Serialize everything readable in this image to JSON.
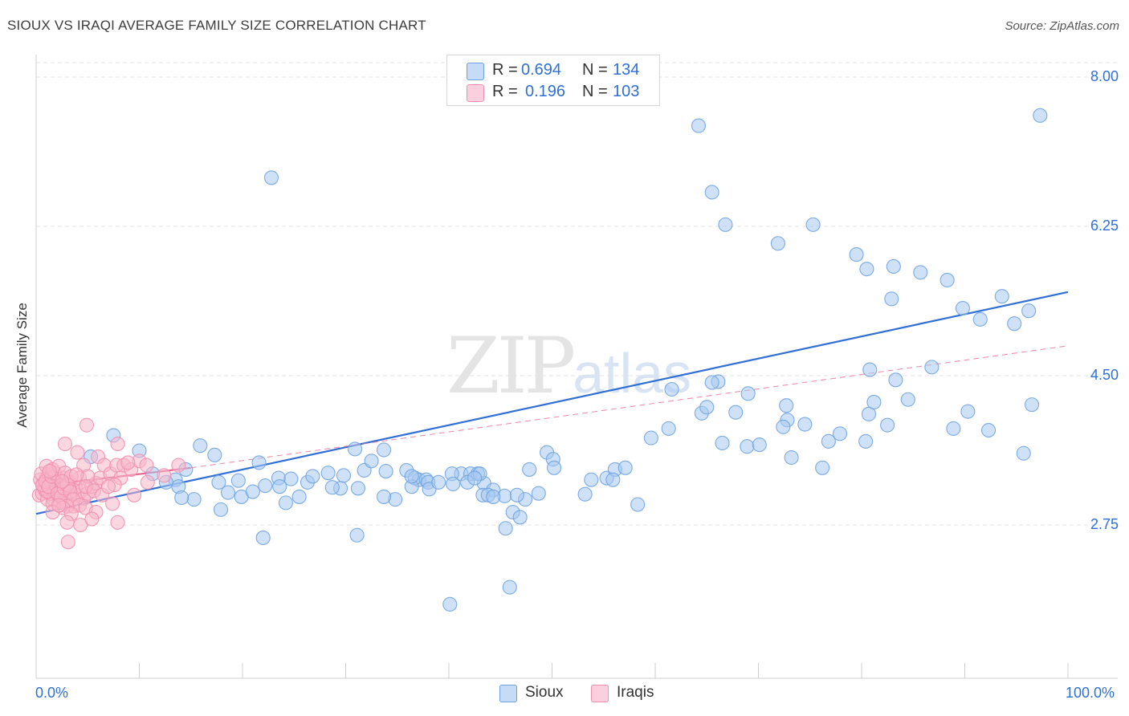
{
  "title": "SIOUX VS IRAQI AVERAGE FAMILY SIZE CORRELATION CHART",
  "source": "Source: ZipAtlas.com",
  "watermark": {
    "zip": "ZIP",
    "atlas": "atlas"
  },
  "legend": {
    "rows": [
      {
        "r_label": "R =",
        "r_value": "0.694",
        "n_label": "N =",
        "n_value": "134",
        "color": "#a8c8f0"
      },
      {
        "r_label": "R =",
        "r_value": "0.196",
        "n_label": "N =",
        "n_value": "103",
        "color": "#f7b6c9"
      }
    ]
  },
  "bottom_legend": [
    {
      "label": "Sioux",
      "color": "#a8c8f0"
    },
    {
      "label": "Iraqis",
      "color": "#f7b6c9"
    }
  ],
  "chart_data": {
    "type": "scatter",
    "title": "SIOUX VS IRAQI AVERAGE FAMILY SIZE CORRELATION CHART",
    "xlabel": "",
    "ylabel": "Average Family Size",
    "xlim": [
      0,
      100
    ],
    "ylim": [
      1.5,
      8.25
    ],
    "x_tick_labels": [
      "0.0%",
      "100.0%"
    ],
    "y_ticks": [
      2.75,
      4.5,
      6.25,
      8.0
    ],
    "y_tick_labels": [
      "2.75",
      "4.50",
      "6.25",
      "8.00"
    ],
    "grid": true,
    "legend_position": "top-center",
    "series": [
      {
        "name": "Sioux",
        "color": "#6fa3e0",
        "fill": "#a8c8f0",
        "trend": {
          "x": [
            0,
            100
          ],
          "y": [
            2.88,
            5.48
          ],
          "style": "solid",
          "color": "#2f6fd6"
        },
        "points": [
          [
            5.3,
            3.55
          ],
          [
            7.5,
            3.8
          ],
          [
            10,
            3.62
          ],
          [
            11.3,
            3.35
          ],
          [
            13.5,
            3.28
          ],
          [
            14.5,
            3.4
          ],
          [
            15.9,
            3.68
          ],
          [
            17.7,
            3.25
          ],
          [
            18.6,
            3.13
          ],
          [
            17.9,
            2.93
          ],
          [
            12.6,
            3.25
          ],
          [
            13.8,
            3.2
          ],
          [
            15.3,
            3.05
          ],
          [
            14.1,
            3.07
          ],
          [
            22,
            2.6
          ],
          [
            23.5,
            3.3
          ],
          [
            24.7,
            3.29
          ],
          [
            21.6,
            3.48
          ],
          [
            19.9,
            3.08
          ],
          [
            19.6,
            3.27
          ],
          [
            17.3,
            3.57
          ],
          [
            21,
            3.14
          ],
          [
            23.6,
            3.2
          ],
          [
            26.3,
            3.25
          ],
          [
            26.8,
            3.32
          ],
          [
            28.3,
            3.36
          ],
          [
            29.5,
            3.18
          ],
          [
            28.7,
            3.19
          ],
          [
            30.9,
            3.64
          ],
          [
            31.8,
            3.39
          ],
          [
            25.5,
            3.08
          ],
          [
            24.2,
            3.01
          ],
          [
            22.2,
            3.21
          ],
          [
            32.5,
            3.5
          ],
          [
            29.8,
            3.33
          ],
          [
            31.2,
            3.18
          ],
          [
            31.1,
            2.63
          ],
          [
            34.8,
            3.05
          ],
          [
            33.7,
            3.08
          ],
          [
            35.9,
            3.39
          ],
          [
            33.9,
            3.38
          ],
          [
            37.1,
            3.28
          ],
          [
            36.7,
            3.3
          ],
          [
            37.8,
            3.28
          ],
          [
            36.4,
            3.2
          ],
          [
            33.7,
            3.63
          ],
          [
            38,
            3.25
          ],
          [
            41.2,
            3.35
          ],
          [
            40.3,
            3.35
          ],
          [
            43.4,
            3.24
          ],
          [
            42.1,
            3.35
          ],
          [
            42.8,
            3.35
          ],
          [
            43,
            3.35
          ],
          [
            44.3,
            3.16
          ],
          [
            45.4,
            3.09
          ],
          [
            43.3,
            3.1
          ],
          [
            47.4,
            3.05
          ],
          [
            48.7,
            3.12
          ],
          [
            41.8,
            3.25
          ],
          [
            40.4,
            3.23
          ],
          [
            38.1,
            3.17
          ],
          [
            39,
            3.25
          ],
          [
            36.4,
            3.32
          ],
          [
            42.5,
            3.3
          ],
          [
            43.8,
            3.1
          ],
          [
            44.3,
            3.08
          ],
          [
            45.5,
            2.71
          ],
          [
            46.2,
            2.9
          ],
          [
            46.6,
            3.1
          ],
          [
            47.8,
            3.4
          ],
          [
            49.5,
            3.6
          ],
          [
            50.1,
            3.52
          ],
          [
            50.2,
            3.42
          ],
          [
            53.8,
            3.28
          ],
          [
            55.3,
            3.3
          ],
          [
            56.1,
            3.4
          ],
          [
            55.9,
            3.28
          ],
          [
            57.1,
            3.42
          ],
          [
            58.3,
            2.99
          ],
          [
            59.6,
            3.77
          ],
          [
            61.3,
            3.88
          ],
          [
            66.1,
            4.43
          ],
          [
            66.5,
            3.71
          ],
          [
            64.5,
            4.06
          ],
          [
            61.6,
            4.34
          ],
          [
            65.5,
            4.42
          ],
          [
            65,
            4.13
          ],
          [
            67.8,
            4.07
          ],
          [
            69,
            4.29
          ],
          [
            68.9,
            3.67
          ],
          [
            70.1,
            3.69
          ],
          [
            73.2,
            3.54
          ],
          [
            72.8,
            3.98
          ],
          [
            72.7,
            4.15
          ],
          [
            72.4,
            3.9
          ],
          [
            74.5,
            3.93
          ],
          [
            76.2,
            3.42
          ],
          [
            76.8,
            3.73
          ],
          [
            77.9,
            3.82
          ],
          [
            80.4,
            3.73
          ],
          [
            80.7,
            4.05
          ],
          [
            81.2,
            4.19
          ],
          [
            83.3,
            4.45
          ],
          [
            80.8,
            4.57
          ],
          [
            82.5,
            3.92
          ],
          [
            84.5,
            4.22
          ],
          [
            86.8,
            4.6
          ],
          [
            88.9,
            3.88
          ],
          [
            90.3,
            4.08
          ],
          [
            92.3,
            3.86
          ],
          [
            96.5,
            4.16
          ],
          [
            95.7,
            3.59
          ],
          [
            22.8,
            6.82
          ],
          [
            64.2,
            7.43
          ],
          [
            65.5,
            6.65
          ],
          [
            66.8,
            6.27
          ],
          [
            71.9,
            6.05
          ],
          [
            75.3,
            6.27
          ],
          [
            79.5,
            5.92
          ],
          [
            80.5,
            5.75
          ],
          [
            83.1,
            5.78
          ],
          [
            82.9,
            5.4
          ],
          [
            85.7,
            5.71
          ],
          [
            88.3,
            5.62
          ],
          [
            89.8,
            5.29
          ],
          [
            91.5,
            5.16
          ],
          [
            93.6,
            5.43
          ],
          [
            94.8,
            5.11
          ],
          [
            96.2,
            5.26
          ],
          [
            97.3,
            7.55
          ],
          [
            40.1,
            1.82
          ],
          [
            45.9,
            2.02
          ],
          [
            46.9,
            2.84
          ],
          [
            53.2,
            3.11
          ]
        ]
      },
      {
        "name": "Iraqis",
        "color": "#f08fb0",
        "fill": "#f7b6c9",
        "trend": {
          "x": [
            0,
            15
          ],
          "y": [
            3.2,
            3.42
          ],
          "style": "solid",
          "color": "#e8668f",
          "extension": {
            "x": [
              15,
              100
            ],
            "y": [
              3.42,
              4.85
            ],
            "style": "dashed"
          }
        },
        "points": [
          [
            0.3,
            3.1
          ],
          [
            0.6,
            3.12
          ],
          [
            0.9,
            3.15
          ],
          [
            1.1,
            3.05
          ],
          [
            1.3,
            3.2
          ],
          [
            1.5,
            3.18
          ],
          [
            1.7,
            3.05
          ],
          [
            1.9,
            3.25
          ],
          [
            2.1,
            3.3
          ],
          [
            2.3,
            3.02
          ],
          [
            0.4,
            3.28
          ],
          [
            0.7,
            3.22
          ],
          [
            1.0,
            3.3
          ],
          [
            1.2,
            3.35
          ],
          [
            1.4,
            3.12
          ],
          [
            1.6,
            3.0
          ],
          [
            1.8,
            3.14
          ],
          [
            2.0,
            3.18
          ],
          [
            2.2,
            3.1
          ],
          [
            2.4,
            3.22
          ],
          [
            2.6,
            3.15
          ],
          [
            2.8,
            3.05
          ],
          [
            3.0,
            3.2
          ],
          [
            3.2,
            3.25
          ],
          [
            3.4,
            3.12
          ],
          [
            3.6,
            2.97
          ],
          [
            3.8,
            3.2
          ],
          [
            4.0,
            3.1
          ],
          [
            4.2,
            3.3
          ],
          [
            4.4,
            3.15
          ],
          [
            0.5,
            3.35
          ],
          [
            0.8,
            3.18
          ],
          [
            1.1,
            3.14
          ],
          [
            1.4,
            3.28
          ],
          [
            1.7,
            3.24
          ],
          [
            2.0,
            3.2
          ],
          [
            2.3,
            3.16
          ],
          [
            2.6,
            3.3
          ],
          [
            2.9,
            3.24
          ],
          [
            3.2,
            3.18
          ],
          [
            0.6,
            3.22
          ],
          [
            0.9,
            3.26
          ],
          [
            1.2,
            3.2
          ],
          [
            1.5,
            3.32
          ],
          [
            1.8,
            3.36
          ],
          [
            2.1,
            3.12
          ],
          [
            2.4,
            3.08
          ],
          [
            2.7,
            3.18
          ],
          [
            3.0,
            3.22
          ],
          [
            3.3,
            3.14
          ],
          [
            1.0,
            3.44
          ],
          [
            1.6,
            3.4
          ],
          [
            2.2,
            3.44
          ],
          [
            2.8,
            3.36
          ],
          [
            3.4,
            3.32
          ],
          [
            4.6,
            3.06
          ],
          [
            5.0,
            3.12
          ],
          [
            5.4,
            3.2
          ],
          [
            5.8,
            3.24
          ],
          [
            6.2,
            3.3
          ],
          [
            2.8,
            3.7
          ],
          [
            4.0,
            3.6
          ],
          [
            4.6,
            3.45
          ],
          [
            5.0,
            3.32
          ],
          [
            6.0,
            3.55
          ],
          [
            6.6,
            3.45
          ],
          [
            7.2,
            3.35
          ],
          [
            7.8,
            3.45
          ],
          [
            8.5,
            3.45
          ],
          [
            9.2,
            3.4
          ],
          [
            10.0,
            3.5
          ],
          [
            10.8,
            3.25
          ],
          [
            8.2,
            3.3
          ],
          [
            7.6,
            3.22
          ],
          [
            4.8,
            3.2
          ],
          [
            5.6,
            3.15
          ],
          [
            6.4,
            3.1
          ],
          [
            7.0,
            3.2
          ],
          [
            3.6,
            3.05
          ],
          [
            4.2,
            2.98
          ],
          [
            3.0,
            2.97
          ],
          [
            2.6,
            2.95
          ],
          [
            1.6,
            2.9
          ],
          [
            2.2,
            2.98
          ],
          [
            3.4,
            2.88
          ],
          [
            4.8,
            2.95
          ],
          [
            5.8,
            2.9
          ],
          [
            3.0,
            2.78
          ],
          [
            4.3,
            2.75
          ],
          [
            5.4,
            2.82
          ],
          [
            7.9,
            2.78
          ],
          [
            3.1,
            2.55
          ],
          [
            4.9,
            3.92
          ],
          [
            7.9,
            3.7
          ],
          [
            12.4,
            3.33
          ],
          [
            13.8,
            3.45
          ],
          [
            7.4,
            3.0
          ],
          [
            10.7,
            3.45
          ],
          [
            8.9,
            3.48
          ],
          [
            9.5,
            3.1
          ],
          [
            1.3,
            3.38
          ],
          [
            2.5,
            3.26
          ],
          [
            3.9,
            3.34
          ]
        ]
      }
    ]
  }
}
